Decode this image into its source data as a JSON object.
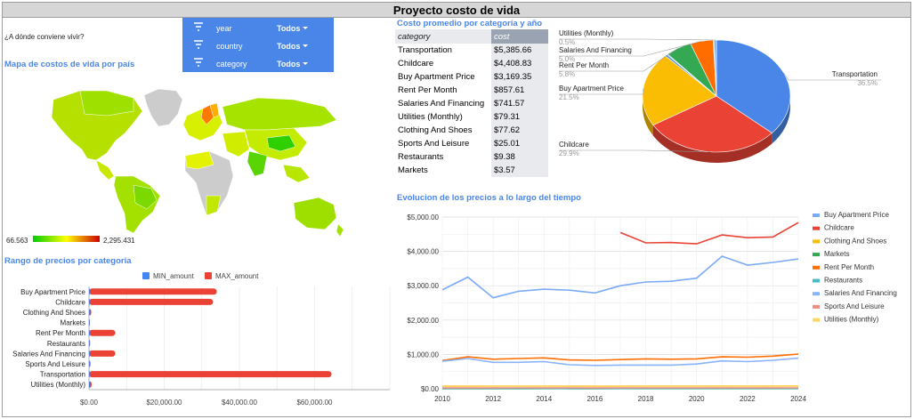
{
  "header": {
    "title": "Proyecto costo de vida"
  },
  "question": "¿A dónde conviene vivir?",
  "filters": [
    {
      "name": "year",
      "value": "Todos"
    },
    {
      "name": "country",
      "value": "Todos"
    },
    {
      "name": "category",
      "value": "Todos"
    }
  ],
  "map": {
    "title": "Mapa de costos de vida por país",
    "min_label": "66.563",
    "max_label": "2,295.431",
    "colors": {
      "low": "#00cc00",
      "mid": "#ffff00",
      "high": "#cc0000",
      "no_data": "#cccccc"
    }
  },
  "table": {
    "title": "Costo promedio por categoría y año",
    "headers": [
      "category",
      "cost"
    ],
    "rows": [
      [
        "Transportation",
        "$5,385.66"
      ],
      [
        "Childcare",
        "$4,408.83"
      ],
      [
        "Buy Apartment Price",
        "$3,169.35"
      ],
      [
        "Rent Per Month",
        "$857.61"
      ],
      [
        "Salaries And Financing",
        "$741.57"
      ],
      [
        "Utilities (Monthly)",
        "$79.31"
      ],
      [
        "Clothing And Shoes",
        "$77.62"
      ],
      [
        "Sports And Leisure",
        "$25.01"
      ],
      [
        "Restaurants",
        "$9.38"
      ],
      [
        "Markets",
        "$3.57"
      ]
    ]
  },
  "chart_data": [
    {
      "type": "pie",
      "title": "",
      "slices": [
        {
          "label": "Transportation",
          "pct_label": "36.5%",
          "value": 36.5,
          "color": "#4a86e8"
        },
        {
          "label": "Childcare",
          "pct_label": "29.9%",
          "value": 29.9,
          "color": "#ea4335"
        },
        {
          "label": "Buy Apartment Price",
          "pct_label": "21.5%",
          "value": 21.5,
          "color": "#fbbc04"
        },
        {
          "label": "",
          "pct_label": "",
          "value": 0.5,
          "color": "#4285f4"
        },
        {
          "label": "",
          "pct_label": "",
          "value": 0.2,
          "color": "#0f9d58"
        },
        {
          "label": "Rent Per Month",
          "pct_label": "5.8%",
          "value": 5.8,
          "color": "#34a853"
        },
        {
          "label": "Salaries And Financing",
          "pct_label": "5.0%",
          "value": 5.0,
          "color": "#ff6d01"
        },
        {
          "label": "",
          "pct_label": "",
          "value": 0.2,
          "color": "#46bdc6"
        },
        {
          "label": "Utilities (Monthly)",
          "pct_label": "0.5%",
          "value": 0.5,
          "color": "#7baaf7"
        }
      ]
    },
    {
      "type": "bar",
      "orientation": "horizontal",
      "title": "Rango de precios por categoria",
      "categories": [
        "Buy Apartment Price",
        "Childcare",
        "Clothing And Shoes",
        "Markets",
        "Rent Per Month",
        "Restaurants",
        "Salaries And Financing",
        "Sports And Leisure",
        "Transportation",
        "Utilities (Monthly)"
      ],
      "series": [
        {
          "name": "MIN_amount",
          "color": "#4285f4",
          "values": [
            30,
            10,
            2,
            0.5,
            15,
            1,
            20,
            1,
            12,
            8
          ]
        },
        {
          "name": "MAX_amount",
          "color": "#ea4335",
          "values": [
            34000,
            33000,
            600,
            150,
            7000,
            300,
            7000,
            400,
            64500,
            700
          ]
        }
      ],
      "xlim": [
        0,
        80000
      ],
      "xticks": [
        0,
        20000,
        40000,
        60000
      ],
      "xtick_labels": [
        "$0.00",
        "$20,000.00",
        "$40,000.00",
        "$60,000.00"
      ]
    },
    {
      "type": "line",
      "title": "Evolucion de los precios a lo largo del tiempo",
      "x": [
        2010,
        2011,
        2012,
        2013,
        2014,
        2015,
        2016,
        2017,
        2018,
        2019,
        2020,
        2021,
        2022,
        2023,
        2024
      ],
      "xticks": [
        2010,
        2012,
        2014,
        2016,
        2018,
        2020,
        2022,
        2024
      ],
      "ylim": [
        0,
        5000
      ],
      "yticks": [
        0,
        1000,
        2000,
        3000,
        4000,
        5000
      ],
      "ytick_labels": [
        "$0.00",
        "$1,000.00",
        "$2,000.00",
        "$3,000.00",
        "$4,000.00",
        "$5,000.00"
      ],
      "series": [
        {
          "name": "Buy Apartment Price",
          "color": "#7baaf7",
          "values": [
            2880,
            3250,
            2650,
            2840,
            2900,
            2870,
            2790,
            3000,
            3110,
            3130,
            3220,
            3860,
            3600,
            3680,
            3780
          ]
        },
        {
          "name": "Childcare",
          "color": "#ea4335",
          "values": [
            null,
            null,
            null,
            null,
            null,
            null,
            null,
            4550,
            4250,
            4260,
            4220,
            4480,
            4400,
            4420,
            4840
          ]
        },
        {
          "name": "Clothing And Shoes",
          "color": "#fbbc04",
          "values": [
            75,
            76,
            77,
            78,
            78,
            76,
            74,
            76,
            77,
            78,
            77,
            80,
            79,
            80,
            82
          ]
        },
        {
          "name": "Markets",
          "color": "#34a853",
          "values": [
            3,
            3,
            3,
            3,
            4,
            3,
            3,
            4,
            4,
            4,
            4,
            4,
            4,
            4,
            4
          ]
        },
        {
          "name": "Rent Per Month",
          "color": "#ff6d01",
          "values": [
            820,
            930,
            860,
            880,
            900,
            840,
            830,
            850,
            870,
            860,
            870,
            930,
            920,
            950,
            1010
          ]
        },
        {
          "name": "Restaurants",
          "color": "#46bdc6",
          "values": [
            9,
            9,
            9,
            9,
            10,
            9,
            9,
            9,
            10,
            10,
            10,
            10,
            10,
            10,
            10
          ]
        },
        {
          "name": "Salaries And Financing",
          "color": "#8ab4f8",
          "values": [
            800,
            880,
            770,
            770,
            790,
            700,
            680,
            690,
            690,
            690,
            720,
            810,
            790,
            830,
            890
          ]
        },
        {
          "name": "Sports And Leisure",
          "color": "#f28b82",
          "values": [
            24,
            24,
            24,
            25,
            25,
            25,
            24,
            25,
            25,
            25,
            25,
            26,
            26,
            26,
            26
          ]
        },
        {
          "name": "Utilities (Monthly)",
          "color": "#fdd663",
          "values": [
            78,
            78,
            79,
            79,
            79,
            78,
            78,
            79,
            79,
            80,
            80,
            80,
            80,
            81,
            81
          ]
        }
      ]
    }
  ]
}
